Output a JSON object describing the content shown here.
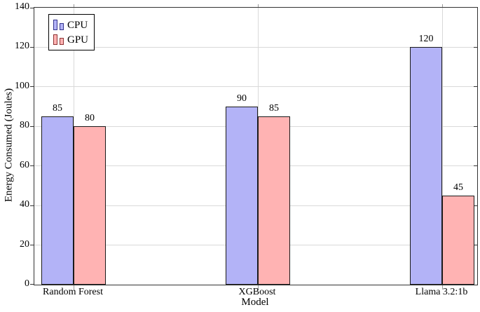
{
  "chart_data": {
    "type": "bar",
    "title": "",
    "categories": [
      "Random Forest",
      "XGBoost",
      "Llama 3.2:1b"
    ],
    "series": [
      {
        "name": "CPU",
        "values": [
          85,
          90,
          120
        ],
        "fill": "#b3b3f7",
        "edge": "#1a1a1a",
        "legend_edge": "#33338c"
      },
      {
        "name": "GPU",
        "values": [
          80,
          85,
          45
        ],
        "fill": "#ffb3b3",
        "edge": "#1a1a1a",
        "legend_edge": "#8c3333"
      }
    ],
    "xlabel": "Model",
    "ylabel": "Energy Consumed (Joules)",
    "ylim": [
      0,
      140
    ],
    "yticks": [
      0,
      20,
      40,
      60,
      80,
      100,
      120,
      140
    ],
    "grid": true,
    "legend_position": "top-left",
    "value_labels_shown": true
  },
  "style": {
    "grid_color": "#d9d9d9",
    "axis_color": "#333333",
    "minor_tick_color": "#999999",
    "text_color": "#000000"
  }
}
